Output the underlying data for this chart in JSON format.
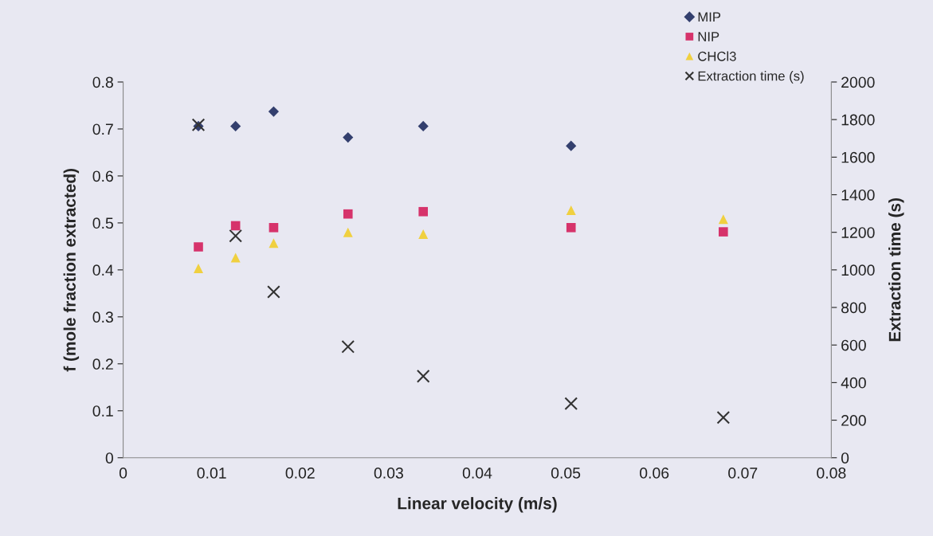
{
  "chart_data": {
    "type": "scatter",
    "xlabel": "Linear velocity (m/s)",
    "ylabel": "f (mole fraction extracted)",
    "y2label": "Extraction time (s)",
    "series": [
      {
        "name": "MIP",
        "color": "#333f6e",
        "marker": "diamond",
        "x": [
          0.0085,
          0.0127,
          0.017,
          0.0254,
          0.0339,
          0.0506
        ],
        "values": [
          0.706,
          0.706,
          0.737,
          0.682,
          0.706,
          0.664
        ]
      },
      {
        "name": "NIP",
        "color": "#d6336b",
        "marker": "square",
        "x": [
          0.0085,
          0.0127,
          0.017,
          0.0254,
          0.0339,
          0.0506,
          0.0678
        ],
        "values": [
          0.449,
          0.494,
          0.49,
          0.519,
          0.524,
          0.49,
          0.481
        ]
      },
      {
        "name": "CHCl3",
        "color": "#f0d040",
        "marker": "triangle",
        "x": [
          0.0085,
          0.0127,
          0.017,
          0.0254,
          0.0339,
          0.0506,
          0.0678
        ],
        "values": [
          0.403,
          0.426,
          0.457,
          0.48,
          0.476,
          0.527,
          0.508
        ]
      },
      {
        "name": "Extraction time (s)",
        "color": "#333333",
        "marker": "cross",
        "axis": "y2",
        "x": [
          0.0085,
          0.0127,
          0.017,
          0.0254,
          0.0339,
          0.0506,
          0.0678
        ],
        "values": [
          1772,
          1181,
          883,
          591,
          434,
          288,
          214
        ]
      }
    ],
    "xlim": [
      0,
      0.08
    ],
    "xticks": [
      0,
      0.01,
      0.02,
      0.03,
      0.04,
      0.05,
      0.06,
      0.07,
      0.08
    ],
    "ylim": [
      0,
      0.8
    ],
    "yticks": [
      0,
      0.1,
      0.2,
      0.3,
      0.4,
      0.5,
      0.6,
      0.7,
      0.8
    ],
    "y2lim": [
      0,
      2000
    ],
    "y2ticks": [
      0,
      200,
      400,
      600,
      800,
      1000,
      1200,
      1400,
      1600,
      1800,
      2000
    ],
    "grid": false,
    "legend": "top right"
  }
}
